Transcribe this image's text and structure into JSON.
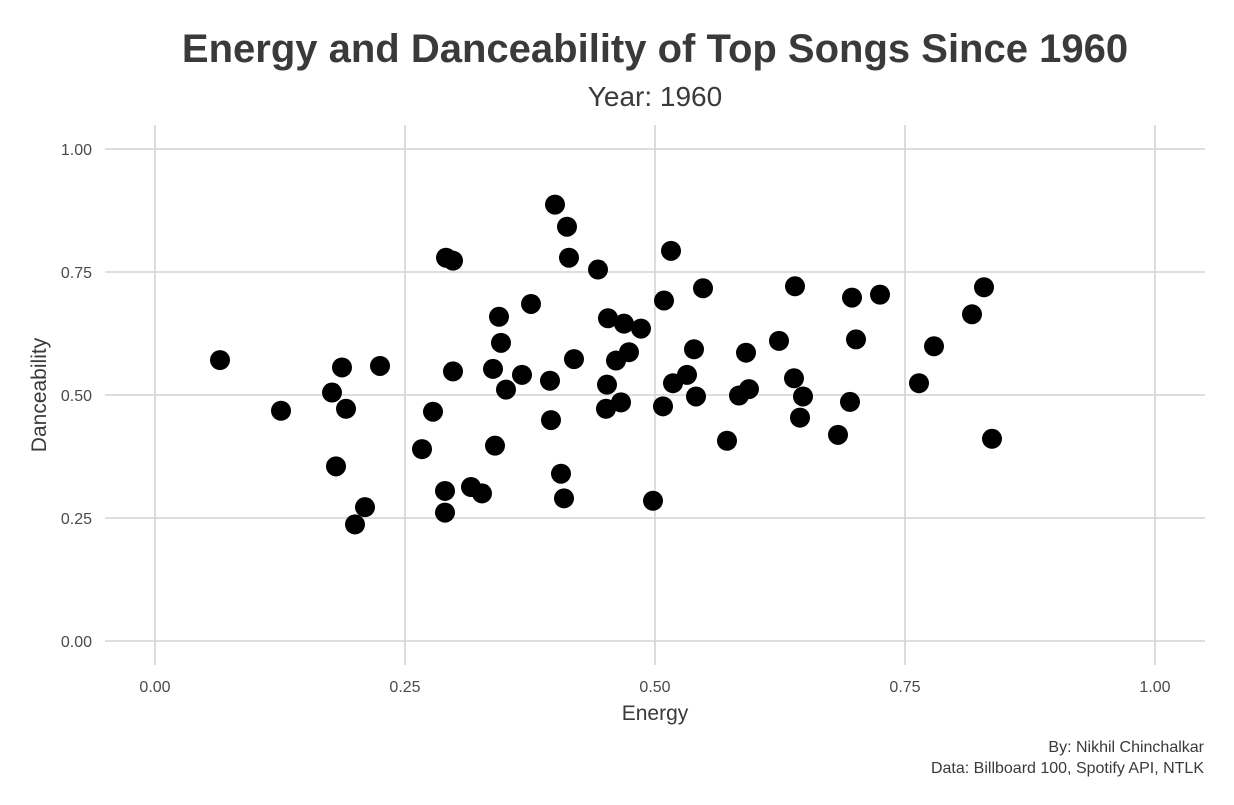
{
  "chart_data": {
    "type": "scatter",
    "title": "Energy and Danceability of Top Songs Since 1960",
    "subtitle": "Year: 1960",
    "xlabel": "Energy",
    "ylabel": "Danceability",
    "xlim": [
      0,
      1
    ],
    "ylim": [
      0,
      1
    ],
    "x_ticks": [
      0,
      0.25,
      0.5,
      0.75,
      1
    ],
    "y_ticks": [
      0,
      0.25,
      0.5,
      0.75,
      1
    ],
    "x_tick_labels": [
      "0.00",
      "0.25",
      "0.50",
      "0.75",
      "1.00"
    ],
    "y_tick_labels": [
      "0.00",
      "0.25",
      "0.50",
      "0.75",
      "1.00"
    ],
    "grid": true,
    "legend": "none",
    "point_color": "#000000",
    "points": [
      [
        0.065,
        0.571
      ],
      [
        0.126,
        0.468
      ],
      [
        0.177,
        0.505
      ],
      [
        0.181,
        0.355
      ],
      [
        0.187,
        0.556
      ],
      [
        0.191,
        0.472
      ],
      [
        0.2,
        0.237
      ],
      [
        0.21,
        0.272
      ],
      [
        0.225,
        0.559
      ],
      [
        0.267,
        0.39
      ],
      [
        0.278,
        0.466
      ],
      [
        0.29,
        0.305
      ],
      [
        0.29,
        0.261
      ],
      [
        0.291,
        0.779
      ],
      [
        0.298,
        0.773
      ],
      [
        0.298,
        0.548
      ],
      [
        0.316,
        0.313
      ],
      [
        0.327,
        0.3
      ],
      [
        0.338,
        0.553
      ],
      [
        0.34,
        0.397
      ],
      [
        0.344,
        0.659
      ],
      [
        0.346,
        0.606
      ],
      [
        0.351,
        0.511
      ],
      [
        0.367,
        0.541
      ],
      [
        0.376,
        0.685
      ],
      [
        0.395,
        0.529
      ],
      [
        0.396,
        0.449
      ],
      [
        0.4,
        0.887
      ],
      [
        0.406,
        0.34
      ],
      [
        0.409,
        0.29
      ],
      [
        0.412,
        0.842
      ],
      [
        0.414,
        0.779
      ],
      [
        0.419,
        0.573
      ],
      [
        0.443,
        0.755
      ],
      [
        0.451,
        0.472
      ],
      [
        0.452,
        0.521
      ],
      [
        0.453,
        0.656
      ],
      [
        0.461,
        0.57
      ],
      [
        0.466,
        0.485
      ],
      [
        0.469,
        0.645
      ],
      [
        0.474,
        0.587
      ],
      [
        0.486,
        0.635
      ],
      [
        0.498,
        0.285
      ],
      [
        0.508,
        0.477
      ],
      [
        0.509,
        0.692
      ],
      [
        0.516,
        0.793
      ],
      [
        0.518,
        0.524
      ],
      [
        0.532,
        0.541
      ],
      [
        0.539,
        0.593
      ],
      [
        0.541,
        0.497
      ],
      [
        0.548,
        0.717
      ],
      [
        0.572,
        0.407
      ],
      [
        0.584,
        0.499
      ],
      [
        0.591,
        0.586
      ],
      [
        0.594,
        0.512
      ],
      [
        0.624,
        0.61
      ],
      [
        0.639,
        0.534
      ],
      [
        0.64,
        0.721
      ],
      [
        0.645,
        0.454
      ],
      [
        0.648,
        0.497
      ],
      [
        0.683,
        0.419
      ],
      [
        0.695,
        0.486
      ],
      [
        0.697,
        0.698
      ],
      [
        0.701,
        0.613
      ],
      [
        0.725,
        0.704
      ],
      [
        0.764,
        0.524
      ],
      [
        0.779,
        0.599
      ],
      [
        0.817,
        0.664
      ],
      [
        0.829,
        0.719
      ],
      [
        0.837,
        0.411
      ]
    ]
  },
  "caption": {
    "line1": "By: Nikhil Chinchalkar",
    "line2": "Data: Billboard 100, Spotify API, NTLK"
  }
}
